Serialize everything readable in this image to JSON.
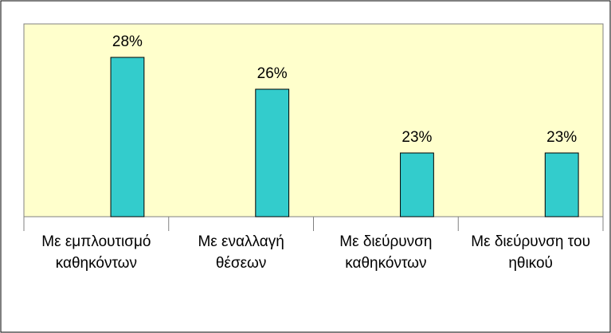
{
  "chart_data": {
    "type": "bar",
    "categories": [
      "Με εμπλουτισμό καθηκόντων",
      "Με εναλλαγή θέσεων",
      "Με διεύρυνση καθηκόντων",
      "Με διεύρυνση του ηθικού"
    ],
    "values": [
      28.0,
      26.4,
      23.2,
      23.2
    ],
    "value_labels": [
      "28%",
      "26%",
      "23%",
      "23%"
    ],
    "color": "#33cccc",
    "ylim": [
      20,
      29.68
    ]
  }
}
